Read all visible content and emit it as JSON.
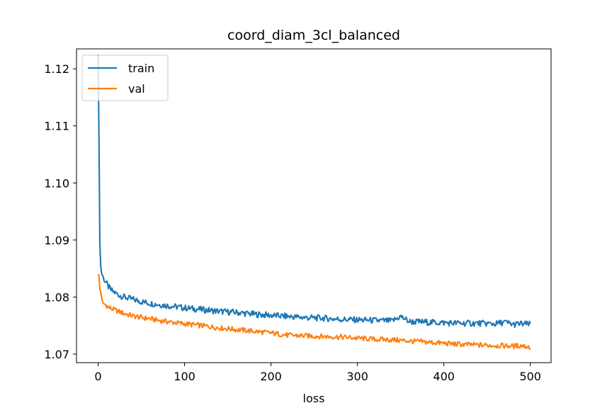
{
  "chart_data": {
    "type": "line",
    "title": "coord_diam_3cl_balanced",
    "xlabel": "loss",
    "ylabel": "",
    "xlim": [
      -25,
      524
    ],
    "ylim": [
      1.0685,
      1.1235
    ],
    "xticks": [
      0,
      100,
      200,
      300,
      400,
      500
    ],
    "yticks": [
      1.07,
      1.08,
      1.09,
      1.1,
      1.11,
      1.12
    ],
    "xtick_labels": [
      "0",
      "100",
      "200",
      "300",
      "400",
      "500"
    ],
    "ytick_labels": [
      "1.07",
      "1.08",
      "1.09",
      "1.10",
      "1.11",
      "1.12"
    ],
    "grid": false,
    "legend_position": "upper-left",
    "series": [
      {
        "name": "train",
        "color": "#1f77b4",
        "x": [
          0,
          1,
          2,
          3,
          4,
          5,
          6,
          8,
          10,
          12,
          15,
          20,
          25,
          30,
          40,
          50,
          60,
          70,
          80,
          90,
          100,
          120,
          140,
          160,
          180,
          200,
          220,
          240,
          260,
          280,
          300,
          320,
          340,
          350,
          360,
          380,
          400,
          420,
          440,
          460,
          470,
          480,
          490,
          500
        ],
        "y": [
          1.1225,
          1.108,
          1.0895,
          1.0855,
          1.0842,
          1.0838,
          1.0835,
          1.0828,
          1.0823,
          1.0818,
          1.0812,
          1.0807,
          1.0803,
          1.08,
          1.0796,
          1.0792,
          1.0789,
          1.0787,
          1.0785,
          1.0783,
          1.0781,
          1.0778,
          1.0775,
          1.0773,
          1.077,
          1.0768,
          1.0766,
          1.0764,
          1.0763,
          1.0761,
          1.076,
          1.0759,
          1.0758,
          1.0766,
          1.0757,
          1.0756,
          1.0755,
          1.0754,
          1.0754,
          1.0753,
          1.0756,
          1.0752,
          1.0753,
          1.0752
        ]
      },
      {
        "name": "val",
        "color": "#ff7f0e",
        "x": [
          0,
          1,
          2,
          3,
          4,
          5,
          6,
          8,
          10,
          12,
          15,
          20,
          25,
          30,
          40,
          50,
          60,
          70,
          80,
          90,
          100,
          120,
          140,
          160,
          180,
          200,
          210,
          220,
          240,
          260,
          280,
          300,
          320,
          340,
          360,
          380,
          400,
          420,
          440,
          460,
          480,
          490,
          500
        ],
        "y": [
          1.084,
          1.0838,
          1.0815,
          1.0808,
          1.08,
          1.0792,
          1.0789,
          1.0787,
          1.0785,
          1.0782,
          1.078,
          1.0777,
          1.0774,
          1.0771,
          1.0767,
          1.0764,
          1.0762,
          1.0759,
          1.0757,
          1.0755,
          1.0753,
          1.075,
          1.0746,
          1.0743,
          1.074,
          1.0737,
          1.0735,
          1.0733,
          1.0732,
          1.0731,
          1.073,
          1.0728,
          1.0726,
          1.0725,
          1.0723,
          1.0721,
          1.0719,
          1.0717,
          1.0716,
          1.0715,
          1.0714,
          1.0715,
          1.0712
        ]
      }
    ]
  }
}
